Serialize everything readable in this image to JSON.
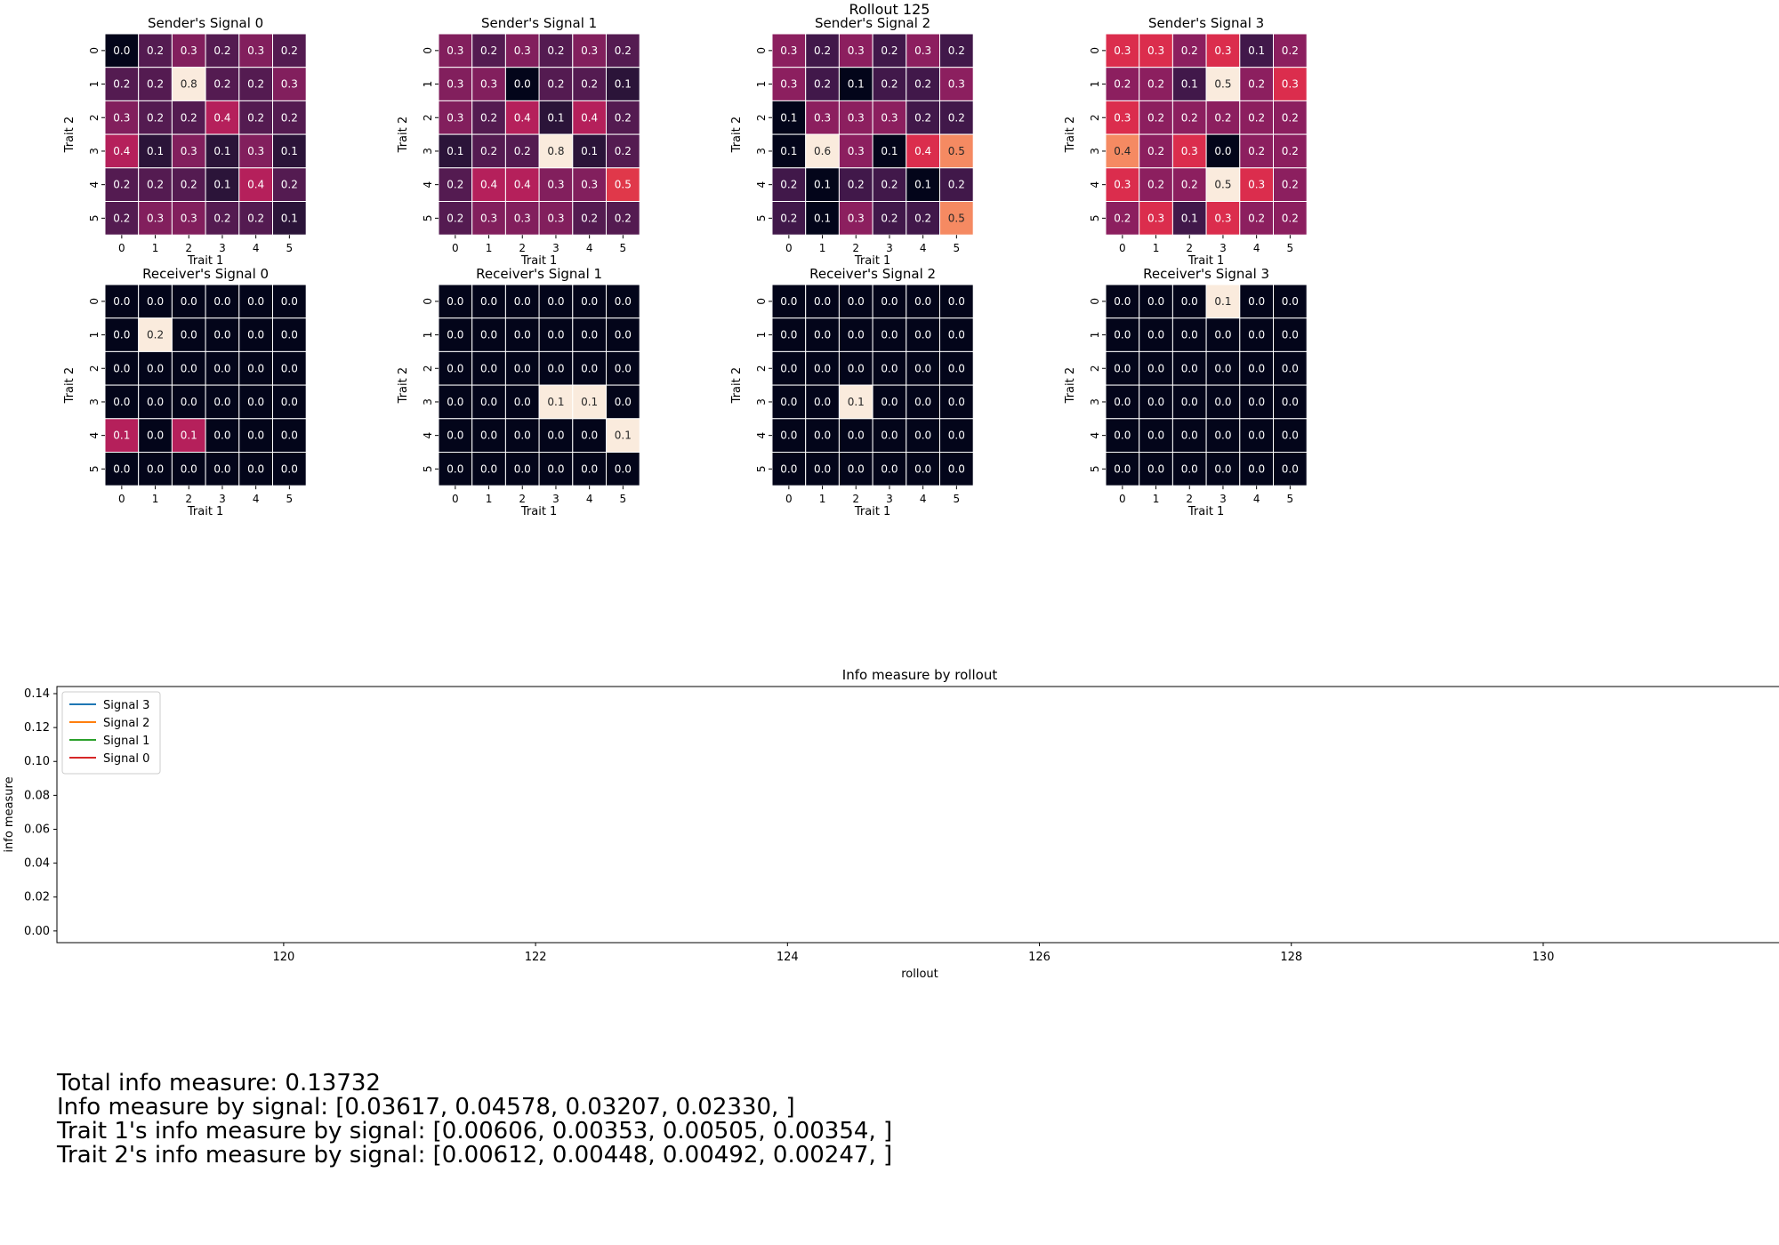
{
  "figure_title": "Rollout 125",
  "chart_data": [
    {
      "type": "heatmap",
      "title": "Sender's Signal 0",
      "xlabel": "Trait 1",
      "ylabel": "Trait 2",
      "x_ticks": [
        "0",
        "1",
        "2",
        "3",
        "4",
        "5"
      ],
      "y_ticks": [
        "0",
        "1",
        "2",
        "3",
        "4",
        "5"
      ],
      "values": [
        [
          0.0,
          0.2,
          0.3,
          0.2,
          0.3,
          0.2
        ],
        [
          0.2,
          0.2,
          0.8,
          0.2,
          0.2,
          0.3
        ],
        [
          0.3,
          0.2,
          0.2,
          0.4,
          0.2,
          0.2
        ],
        [
          0.4,
          0.1,
          0.3,
          0.1,
          0.3,
          0.1
        ],
        [
          0.2,
          0.2,
          0.2,
          0.1,
          0.4,
          0.2
        ],
        [
          0.2,
          0.3,
          0.3,
          0.2,
          0.2,
          0.1
        ]
      ]
    },
    {
      "type": "heatmap",
      "title": "Sender's Signal 1",
      "xlabel": "Trait 1",
      "ylabel": "Trait 2",
      "x_ticks": [
        "0",
        "1",
        "2",
        "3",
        "4",
        "5"
      ],
      "y_ticks": [
        "0",
        "1",
        "2",
        "3",
        "4",
        "5"
      ],
      "values": [
        [
          0.3,
          0.2,
          0.3,
          0.2,
          0.3,
          0.2
        ],
        [
          0.3,
          0.3,
          0.0,
          0.2,
          0.2,
          0.1
        ],
        [
          0.3,
          0.2,
          0.4,
          0.1,
          0.4,
          0.2
        ],
        [
          0.1,
          0.2,
          0.2,
          0.8,
          0.1,
          0.2
        ],
        [
          0.2,
          0.4,
          0.4,
          0.3,
          0.3,
          0.5
        ],
        [
          0.2,
          0.3,
          0.3,
          0.3,
          0.2,
          0.2
        ]
      ]
    },
    {
      "type": "heatmap",
      "title": "Sender's Signal 2",
      "xlabel": "Trait 1",
      "ylabel": "Trait 2",
      "x_ticks": [
        "0",
        "1",
        "2",
        "3",
        "4",
        "5"
      ],
      "y_ticks": [
        "0",
        "1",
        "2",
        "3",
        "4",
        "5"
      ],
      "values": [
        [
          0.3,
          0.2,
          0.3,
          0.2,
          0.3,
          0.2
        ],
        [
          0.3,
          0.2,
          0.1,
          0.2,
          0.2,
          0.3
        ],
        [
          0.1,
          0.3,
          0.3,
          0.3,
          0.2,
          0.2
        ],
        [
          0.1,
          0.6,
          0.3,
          0.1,
          0.4,
          0.5
        ],
        [
          0.2,
          0.1,
          0.2,
          0.2,
          0.1,
          0.2
        ],
        [
          0.2,
          0.1,
          0.3,
          0.2,
          0.2,
          0.5
        ]
      ]
    },
    {
      "type": "heatmap",
      "title": "Sender's Signal 3",
      "xlabel": "Trait 1",
      "ylabel": "Trait 2",
      "x_ticks": [
        "0",
        "1",
        "2",
        "3",
        "4",
        "5"
      ],
      "y_ticks": [
        "0",
        "1",
        "2",
        "3",
        "4",
        "5"
      ],
      "values": [
        [
          0.3,
          0.3,
          0.2,
          0.3,
          0.1,
          0.2
        ],
        [
          0.2,
          0.2,
          0.1,
          0.5,
          0.2,
          0.3
        ],
        [
          0.3,
          0.2,
          0.2,
          0.2,
          0.2,
          0.2
        ],
        [
          0.4,
          0.2,
          0.3,
          0.0,
          0.2,
          0.2
        ],
        [
          0.3,
          0.2,
          0.2,
          0.5,
          0.3,
          0.2
        ],
        [
          0.2,
          0.3,
          0.1,
          0.3,
          0.2,
          0.2
        ]
      ]
    },
    {
      "type": "heatmap",
      "title": "Receiver's Signal 0",
      "xlabel": "Trait 1",
      "ylabel": "Trait 2",
      "x_ticks": [
        "0",
        "1",
        "2",
        "3",
        "4",
        "5"
      ],
      "y_ticks": [
        "0",
        "1",
        "2",
        "3",
        "4",
        "5"
      ],
      "values": [
        [
          0.0,
          0.0,
          0.0,
          0.0,
          0.0,
          0.0
        ],
        [
          0.0,
          0.2,
          0.0,
          0.0,
          0.0,
          0.0
        ],
        [
          0.0,
          0.0,
          0.0,
          0.0,
          0.0,
          0.0
        ],
        [
          0.0,
          0.0,
          0.0,
          0.0,
          0.0,
          0.0
        ],
        [
          0.1,
          0.0,
          0.1,
          0.0,
          0.0,
          0.0
        ],
        [
          0.0,
          0.0,
          0.0,
          0.0,
          0.0,
          0.0
        ]
      ]
    },
    {
      "type": "heatmap",
      "title": "Receiver's Signal 1",
      "xlabel": "Trait 1",
      "ylabel": "Trait 2",
      "x_ticks": [
        "0",
        "1",
        "2",
        "3",
        "4",
        "5"
      ],
      "y_ticks": [
        "0",
        "1",
        "2",
        "3",
        "4",
        "5"
      ],
      "values": [
        [
          0.0,
          0.0,
          0.0,
          0.0,
          0.0,
          0.0
        ],
        [
          0.0,
          0.0,
          0.0,
          0.0,
          0.0,
          0.0
        ],
        [
          0.0,
          0.0,
          0.0,
          0.0,
          0.0,
          0.0
        ],
        [
          0.0,
          0.0,
          0.0,
          0.1,
          0.1,
          0.0
        ],
        [
          0.0,
          0.0,
          0.0,
          0.0,
          0.0,
          0.1
        ],
        [
          0.0,
          0.0,
          0.0,
          0.0,
          0.0,
          0.0
        ]
      ]
    },
    {
      "type": "heatmap",
      "title": "Receiver's Signal 2",
      "xlabel": "Trait 1",
      "ylabel": "Trait 2",
      "x_ticks": [
        "0",
        "1",
        "2",
        "3",
        "4",
        "5"
      ],
      "y_ticks": [
        "0",
        "1",
        "2",
        "3",
        "4",
        "5"
      ],
      "values": [
        [
          0.0,
          0.0,
          0.0,
          0.0,
          0.0,
          0.0
        ],
        [
          0.0,
          0.0,
          0.0,
          0.0,
          0.0,
          0.0
        ],
        [
          0.0,
          0.0,
          0.0,
          0.0,
          0.0,
          0.0
        ],
        [
          0.0,
          0.0,
          0.1,
          0.0,
          0.0,
          0.0
        ],
        [
          0.0,
          0.0,
          0.0,
          0.0,
          0.0,
          0.0
        ],
        [
          0.0,
          0.0,
          0.0,
          0.0,
          0.0,
          0.0
        ]
      ]
    },
    {
      "type": "heatmap",
      "title": "Receiver's Signal 3",
      "xlabel": "Trait 1",
      "ylabel": "Trait 2",
      "x_ticks": [
        "0",
        "1",
        "2",
        "3",
        "4",
        "5"
      ],
      "y_ticks": [
        "0",
        "1",
        "2",
        "3",
        "4",
        "5"
      ],
      "values": [
        [
          0.0,
          0.0,
          0.0,
          0.1,
          0.0,
          0.0
        ],
        [
          0.0,
          0.0,
          0.0,
          0.0,
          0.0,
          0.0
        ],
        [
          0.0,
          0.0,
          0.0,
          0.0,
          0.0,
          0.0
        ],
        [
          0.0,
          0.0,
          0.0,
          0.0,
          0.0,
          0.0
        ],
        [
          0.0,
          0.0,
          0.0,
          0.0,
          0.0,
          0.0
        ],
        [
          0.0,
          0.0,
          0.0,
          0.0,
          0.0,
          0.0
        ]
      ]
    },
    {
      "type": "line",
      "title": "Info measure by rollout",
      "xlabel": "rollout",
      "ylabel": "info measure",
      "xlim": [
        118.2,
        131.9
      ],
      "ylim": [
        -0.0069,
        0.1442
      ],
      "x_ticks": [
        120,
        122,
        124,
        126,
        128,
        130
      ],
      "y_ticks": [
        "0.00",
        "0.02",
        "0.04",
        "0.06",
        "0.08",
        "0.10",
        "0.12",
        "0.14"
      ],
      "legend_location": "upper-left",
      "series": [
        {
          "name": "Signal 3",
          "color": "#1f77b4",
          "points": []
        },
        {
          "name": "Signal 2",
          "color": "#ff7f0e",
          "points": []
        },
        {
          "name": "Signal 1",
          "color": "#2ca02c",
          "points": []
        },
        {
          "name": "Signal 0",
          "color": "#d62728",
          "points": []
        }
      ]
    }
  ],
  "summary": {
    "total": "Total info measure: 0.13732",
    "by_signal": "Info measure by signal: [0.03617, 0.04578, 0.03207, 0.02330, ]",
    "trait1": "Trait 1's info measure by signal: [0.00606, 0.00353, 0.00505, 0.00354, ]",
    "trait2": "Trait 2's info measure by signal: [0.00612, 0.00448, 0.00492, 0.00247, ]"
  }
}
